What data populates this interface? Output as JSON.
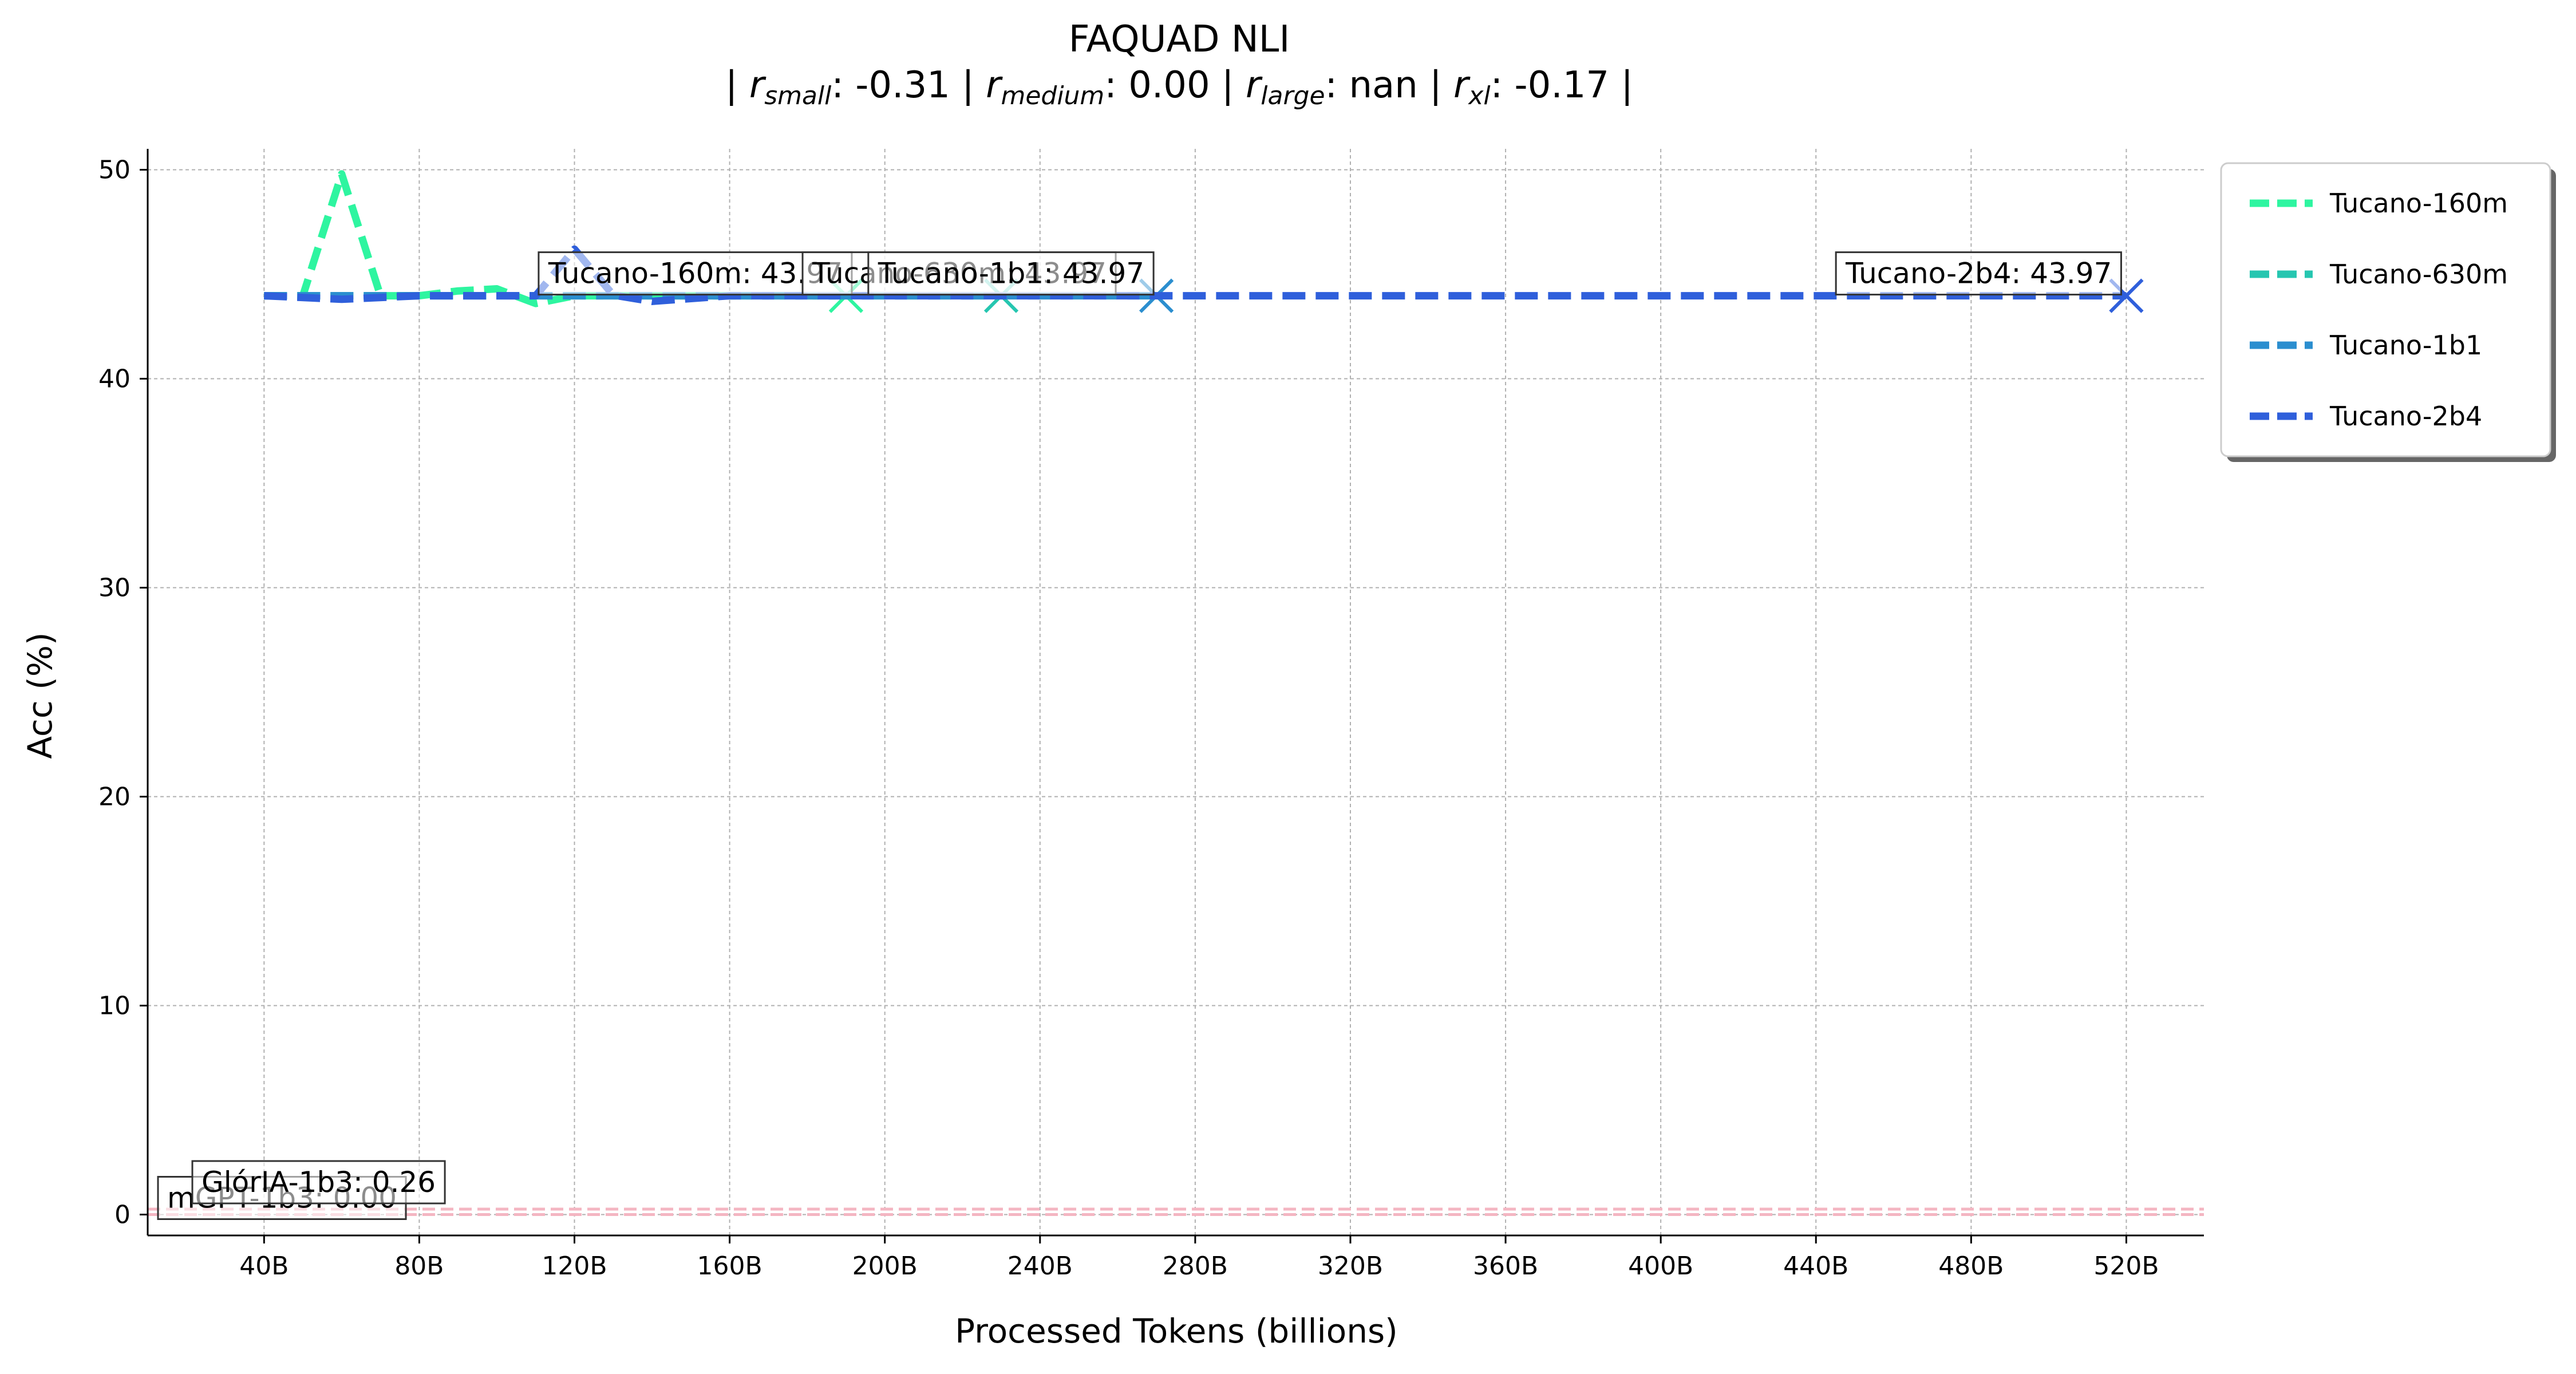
{
  "chart_data": {
    "type": "line",
    "title": "FAQUAD NLI",
    "subtitle_parts": [
      {
        "name": "r",
        "sub": "small",
        "value": "-0.31"
      },
      {
        "name": "r",
        "sub": "medium",
        "value": "0.00"
      },
      {
        "name": "r",
        "sub": "large",
        "value": "nan"
      },
      {
        "name": "r",
        "sub": "xl",
        "value": "-0.17"
      }
    ],
    "xlabel": "Processed Tokens (billions)",
    "ylabel": "Acc (%)",
    "xlim": [
      10,
      540
    ],
    "ylim": [
      -1,
      51
    ],
    "x_ticks": [
      40,
      80,
      120,
      160,
      200,
      240,
      280,
      320,
      360,
      400,
      440,
      480,
      520
    ],
    "x_tick_labels": [
      "40B",
      "80B",
      "120B",
      "160B",
      "200B",
      "240B",
      "280B",
      "320B",
      "360B",
      "400B",
      "440B",
      "480B",
      "520B"
    ],
    "y_ticks": [
      0,
      10,
      20,
      30,
      40,
      50
    ],
    "y_tick_labels": [
      "0",
      "10",
      "20",
      "30",
      "40",
      "50"
    ],
    "grid": true,
    "legend_position": "outside-top-right",
    "series": [
      {
        "name": "Tucano-160m",
        "color": "#2EF5A0",
        "x": [
          40,
          50,
          60,
          70,
          80,
          90,
          100,
          110,
          120,
          130,
          140,
          150,
          160,
          170,
          180,
          190
        ],
        "y": [
          43.97,
          43.97,
          49.8,
          43.97,
          43.97,
          44.2,
          44.3,
          43.6,
          43.97,
          43.97,
          43.97,
          43.97,
          43.97,
          43.97,
          43.97,
          43.97
        ]
      },
      {
        "name": "Tucano-630m",
        "color": "#26C6B0",
        "x": [
          40,
          60,
          80,
          100,
          120,
          140,
          160,
          180,
          200,
          220,
          230
        ],
        "y": [
          43.97,
          43.97,
          43.97,
          43.97,
          43.97,
          43.97,
          43.97,
          43.97,
          43.97,
          43.97,
          43.97
        ]
      },
      {
        "name": "Tucano-1b1",
        "color": "#2B8ECF",
        "x": [
          40,
          80,
          120,
          160,
          200,
          240,
          270
        ],
        "y": [
          43.97,
          43.97,
          43.97,
          43.97,
          43.97,
          43.97,
          43.97
        ]
      },
      {
        "name": "Tucano-2b4",
        "color": "#2F5FDB",
        "x": [
          40,
          60,
          80,
          100,
          110,
          120,
          130,
          140,
          160,
          200,
          240,
          280,
          320,
          360,
          400,
          440,
          480,
          520
        ],
        "y": [
          43.97,
          43.8,
          43.97,
          43.97,
          43.97,
          46.2,
          44.0,
          43.7,
          43.97,
          43.97,
          43.97,
          43.97,
          43.97,
          43.97,
          43.97,
          43.97,
          43.97,
          43.97
        ]
      }
    ],
    "end_labels": [
      {
        "text": "Tucano-160m: 43.97",
        "x": 190,
        "y": 43.97,
        "series": "Tucano-160m"
      },
      {
        "text": "Tucano-630m: 43.97",
        "x": 230,
        "y": 43.97,
        "series": "Tucano-630m"
      },
      {
        "text": "Tucano-1b1: 43.97",
        "x": 270,
        "y": 43.97,
        "series": "Tucano-1b1"
      },
      {
        "text": "Tucano-2b4: 43.97",
        "x": 520,
        "y": 43.97,
        "series": "Tucano-2b4"
      }
    ],
    "baselines": [
      {
        "text": "mGPT-1b3: 0.00",
        "y": 0.0,
        "color": "#F4B6C2"
      },
      {
        "text": "GlórIA-1b3: 0.26",
        "y": 0.26,
        "color": "#F4B6C2"
      }
    ]
  }
}
